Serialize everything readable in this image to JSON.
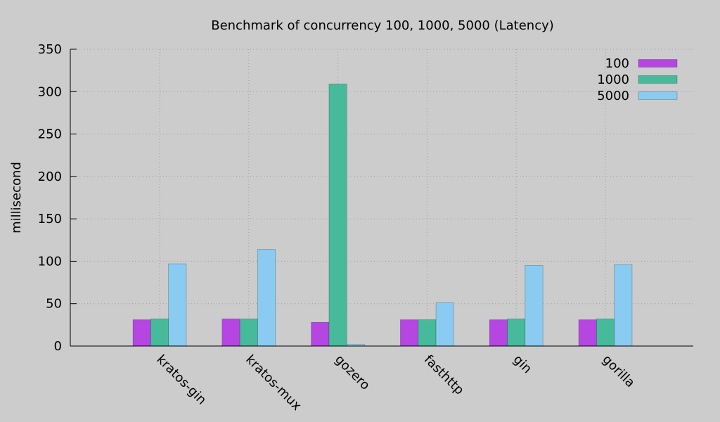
{
  "chart_data": {
    "type": "bar",
    "title": "Benchmark of concurrency 100, 1000, 5000 (Latency)",
    "xlabel": "",
    "ylabel": "millisecond",
    "ylim": [
      0,
      350
    ],
    "yticks": [
      0,
      50,
      100,
      150,
      200,
      250,
      300,
      350
    ],
    "grid": true,
    "legend_position": "top-right",
    "categories": [
      "kratos-gin",
      "kratos-mux",
      "gozero",
      "fasthttp",
      "gin",
      "gorilla"
    ],
    "series": [
      {
        "name": "100",
        "color": "#b546e2",
        "values": [
          31,
          32,
          28,
          31,
          31,
          31
        ]
      },
      {
        "name": "1000",
        "color": "#48ba9c",
        "values": [
          32,
          32,
          309,
          31,
          32,
          32
        ]
      },
      {
        "name": "5000",
        "color": "#8acbf1",
        "values": [
          97,
          114,
          2,
          51,
          95,
          96
        ]
      }
    ]
  }
}
